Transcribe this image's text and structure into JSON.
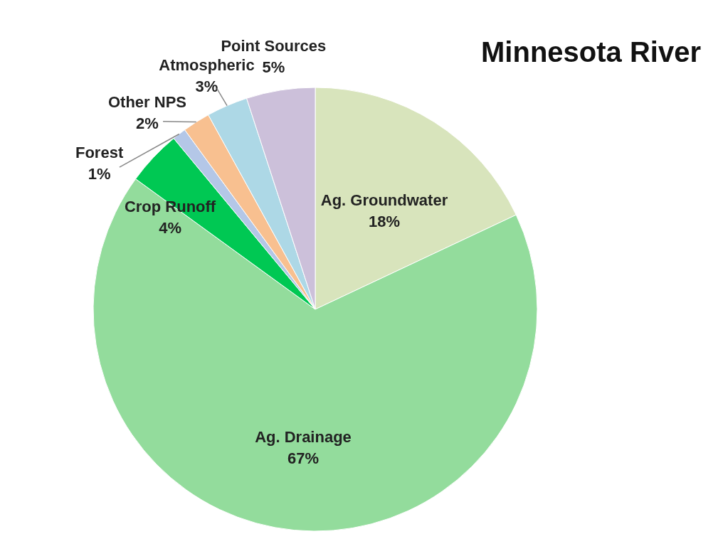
{
  "chart_data": {
    "type": "pie",
    "title": "Minnesota River",
    "categories": [
      "Ag. Groundwater",
      "Ag. Drainage",
      "Crop Runoff",
      "Forest",
      "Other NPS",
      "Atmospheric",
      "Point Sources"
    ],
    "values": [
      18,
      67,
      4,
      1,
      2,
      3,
      5
    ],
    "value_labels": [
      "18%",
      "67%",
      "4%",
      "1%",
      "2%",
      "3%",
      "5%"
    ],
    "colors": [
      "#d8e4bc",
      "#93dc9c",
      "#00c853",
      "#b4c7e7",
      "#f8c090",
      "#add8e6",
      "#ccc0da"
    ]
  }
}
